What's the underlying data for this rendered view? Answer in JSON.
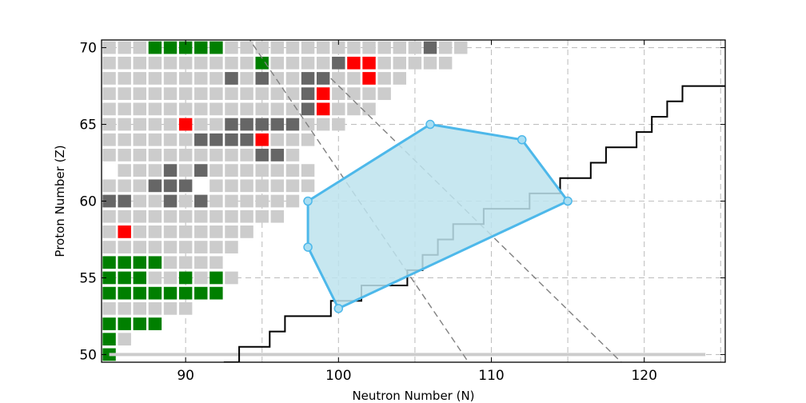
{
  "chart_data": {
    "type": "heatmap",
    "title": "",
    "xlabel": "Neutron Number (N)",
    "ylabel": "Proton Number (Z)",
    "xlim": [
      84.5,
      125.3
    ],
    "ylim": [
      49.5,
      70.5
    ],
    "xticks": [
      90,
      100,
      110,
      120
    ],
    "yticks": [
      50,
      55,
      60,
      65,
      70
    ],
    "grid": true,
    "colors": {
      "grey": "#cccccc",
      "dark": "#666666",
      "red": "#ff0000",
      "green": "#007f00",
      "region_fill": "#bde3ed",
      "region_edge": "#4db8ea",
      "dashed": "#808080",
      "ridge": "#cccccc"
    },
    "nuclides": [
      {
        "z": 70,
        "grey": [
          85,
          86,
          87,
          92,
          93,
          94,
          95,
          96,
          97,
          98,
          99,
          100,
          101,
          102,
          103,
          104,
          105,
          107,
          108
        ],
        "dark": [
          106
        ],
        "red": [],
        "green": [
          88,
          89,
          90,
          91,
          92
        ]
      },
      {
        "z": 69,
        "grey": [
          85,
          86,
          87,
          88,
          89,
          90,
          91,
          92,
          93,
          94,
          96,
          97,
          98,
          99,
          103,
          104,
          105,
          106,
          107
        ],
        "dark": [
          100
        ],
        "red": [
          101,
          102
        ],
        "green": [
          95
        ]
      },
      {
        "z": 68,
        "grey": [
          85,
          86,
          87,
          88,
          89,
          90,
          91,
          92,
          93,
          94,
          95,
          96,
          97,
          100,
          101,
          103,
          104
        ],
        "dark": [
          93,
          95,
          98,
          99
        ],
        "red": [
          102
        ],
        "green": []
      },
      {
        "z": 67,
        "grey": [
          85,
          86,
          87,
          88,
          89,
          90,
          91,
          92,
          93,
          94,
          95,
          96,
          97,
          99,
          100,
          101,
          102,
          103
        ],
        "dark": [
          98
        ],
        "red": [
          99
        ],
        "green": []
      },
      {
        "z": 66,
        "grey": [
          85,
          86,
          87,
          88,
          89,
          90,
          91,
          92,
          93,
          94,
          95,
          96,
          97,
          99,
          100,
          101,
          102
        ],
        "dark": [
          98
        ],
        "red": [
          99
        ],
        "green": []
      },
      {
        "z": 65,
        "grey": [
          85,
          86,
          87,
          88,
          89,
          91,
          92,
          98,
          99,
          100
        ],
        "dark": [
          93,
          94,
          95,
          96,
          97
        ],
        "red": [
          90
        ],
        "green": []
      },
      {
        "z": 64,
        "grey": [
          85,
          86,
          87,
          88,
          89,
          90,
          96,
          97,
          98
        ],
        "dark": [
          91,
          92,
          93,
          94
        ],
        "red": [
          95
        ],
        "green": []
      },
      {
        "z": 63,
        "grey": [
          85,
          86,
          87,
          88,
          89,
          90,
          91,
          92,
          93,
          94,
          97
        ],
        "dark": [
          95,
          96
        ],
        "red": [],
        "green": []
      },
      {
        "z": 62,
        "grey": [
          86,
          87,
          88,
          90,
          92,
          93,
          94,
          95,
          96,
          97,
          98
        ],
        "dark": [
          89,
          91
        ],
        "red": [],
        "green": []
      },
      {
        "z": 61,
        "grey": [
          85,
          86,
          87,
          88,
          92,
          93,
          94,
          95,
          96,
          97,
          98
        ],
        "dark": [
          88,
          89,
          90
        ],
        "red": [],
        "green": []
      },
      {
        "z": 60,
        "grey": [
          85,
          86,
          87,
          88,
          89,
          90,
          91,
          92,
          93,
          94,
          95,
          96,
          97
        ],
        "dark": [
          85,
          86,
          89,
          91
        ],
        "red": [],
        "green": []
      },
      {
        "z": 59,
        "grey": [
          85,
          86,
          87,
          88,
          89,
          90,
          91,
          92,
          93,
          94,
          95,
          96
        ],
        "dark": [],
        "red": [],
        "green": []
      },
      {
        "z": 58,
        "grey": [
          85,
          86,
          87,
          88,
          89,
          90,
          91,
          92,
          93,
          94
        ],
        "dark": [],
        "red": [
          86
        ],
        "green": []
      },
      {
        "z": 57,
        "grey": [
          85,
          86,
          87,
          88,
          89,
          90,
          91,
          92,
          93
        ],
        "dark": [],
        "red": [],
        "green": []
      },
      {
        "z": 56,
        "grey": [
          89,
          90,
          91,
          92
        ],
        "dark": [],
        "red": [],
        "green": [
          85,
          86,
          87,
          88
        ]
      },
      {
        "z": 55,
        "grey": [
          88,
          89,
          91,
          93
        ],
        "dark": [],
        "red": [],
        "green": [
          85,
          86,
          87,
          90,
          92
        ]
      },
      {
        "z": 54,
        "grey": [],
        "dark": [],
        "red": [],
        "green": [
          85,
          86,
          87,
          88,
          89,
          90,
          91,
          92
        ]
      },
      {
        "z": 53,
        "grey": [
          85,
          86,
          87,
          88,
          89,
          90
        ],
        "dark": [],
        "red": [],
        "green": []
      },
      {
        "z": 52,
        "grey": [],
        "dark": [],
        "red": [],
        "green": [
          85,
          86,
          87,
          88
        ]
      },
      {
        "z": 51,
        "grey": [
          86
        ],
        "dark": [],
        "red": [],
        "green": [
          85
        ]
      },
      {
        "z": 50,
        "grey": [],
        "dark": [],
        "red": [],
        "green": [
          85
        ]
      }
    ],
    "ridge_line": {
      "z": 50,
      "n_from": 85,
      "n_to": 124
    },
    "dashed_lines": [
      {
        "points": [
          [
            92.5,
            73
          ],
          [
            108.5,
            49.5
          ]
        ]
      },
      {
        "points": [
          [
            99.5,
            68
          ],
          [
            118.5,
            49.5
          ]
        ]
      }
    ],
    "black_staircase": [
      [
        92.5,
        49.5
      ],
      [
        93.5,
        49.5
      ],
      [
        93.5,
        50.5
      ],
      [
        95.5,
        50.5
      ],
      [
        95.5,
        51.5
      ],
      [
        96.5,
        51.5
      ],
      [
        96.5,
        52.5
      ],
      [
        99.5,
        52.5
      ],
      [
        99.5,
        53.5
      ],
      [
        101.5,
        53.5
      ],
      [
        101.5,
        54.5
      ],
      [
        104.5,
        54.5
      ],
      [
        104.5,
        55.5
      ],
      [
        105.5,
        55.5
      ],
      [
        105.5,
        56.5
      ],
      [
        106.5,
        56.5
      ],
      [
        106.5,
        57.5
      ],
      [
        107.5,
        57.5
      ],
      [
        107.5,
        58.5
      ],
      [
        109.5,
        58.5
      ],
      [
        109.5,
        59.5
      ],
      [
        112.5,
        59.5
      ],
      [
        112.5,
        60.5
      ],
      [
        114.5,
        60.5
      ],
      [
        114.5,
        61.5
      ],
      [
        116.5,
        61.5
      ],
      [
        116.5,
        62.5
      ],
      [
        117.5,
        62.5
      ],
      [
        117.5,
        63.5
      ],
      [
        119.5,
        63.5
      ],
      [
        119.5,
        64.5
      ],
      [
        120.5,
        64.5
      ],
      [
        120.5,
        65.5
      ],
      [
        121.5,
        65.5
      ],
      [
        121.5,
        66.5
      ],
      [
        122.5,
        66.5
      ],
      [
        122.5,
        67.5
      ],
      [
        125.3,
        67.5
      ]
    ],
    "region_polygon": [
      [
        98,
        60
      ],
      [
        106,
        65
      ],
      [
        112,
        64
      ],
      [
        115,
        60
      ],
      [
        100,
        53
      ],
      [
        98,
        57
      ]
    ]
  }
}
